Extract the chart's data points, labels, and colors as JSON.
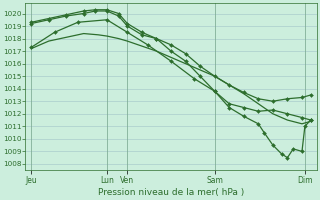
{
  "background_color": "#cceedd",
  "grid_color": "#aacccc",
  "line_color": "#2d6e2d",
  "title": "Pression niveau de la mer( hPa )",
  "ylim_low": 1007.5,
  "ylim_high": 1020.8,
  "yticks": [
    1008,
    1009,
    1010,
    1011,
    1012,
    1013,
    1014,
    1015,
    1016,
    1017,
    1018,
    1019,
    1020
  ],
  "xlim_low": 0,
  "xlim_high": 100,
  "xtick_positions": [
    2,
    28,
    35,
    65,
    96
  ],
  "xtick_labels": [
    "Jeu",
    "Lun",
    "Ven",
    "Sam",
    "Dim"
  ],
  "line1_x": [
    2,
    5,
    8,
    12,
    16,
    20,
    25,
    28,
    32,
    35,
    40,
    45,
    50,
    55,
    60,
    65,
    70,
    75,
    80,
    85,
    90,
    95,
    98
  ],
  "line1_y": [
    1017.2,
    1017.5,
    1017.8,
    1018.0,
    1018.2,
    1018.4,
    1018.3,
    1018.2,
    1018.0,
    1017.8,
    1017.4,
    1017.0,
    1016.5,
    1016.0,
    1015.5,
    1015.0,
    1014.3,
    1013.6,
    1012.8,
    1012.0,
    1011.5,
    1011.2,
    1011.4
  ],
  "line2_x": [
    2,
    8,
    14,
    20,
    24,
    28,
    32,
    35,
    40,
    45,
    50,
    55,
    60,
    65,
    70,
    75,
    80,
    85,
    90,
    95,
    98
  ],
  "line2_y": [
    1019.2,
    1019.5,
    1019.8,
    1020.0,
    1020.2,
    1020.2,
    1019.8,
    1019.0,
    1018.3,
    1018.0,
    1017.5,
    1016.8,
    1015.8,
    1015.0,
    1014.3,
    1013.7,
    1013.2,
    1013.0,
    1013.2,
    1013.3,
    1013.5
  ],
  "line3_x": [
    2,
    8,
    14,
    20,
    24,
    28,
    32,
    35,
    40,
    45,
    50,
    55,
    60,
    65,
    70,
    75,
    80,
    85,
    90,
    95,
    98
  ],
  "line3_y": [
    1019.3,
    1019.6,
    1019.9,
    1020.2,
    1020.3,
    1020.3,
    1020.0,
    1019.2,
    1018.5,
    1018.0,
    1017.0,
    1016.2,
    1015.0,
    1013.8,
    1012.8,
    1012.5,
    1012.2,
    1012.3,
    1012.0,
    1011.7,
    1011.5
  ],
  "line4_x": [
    2,
    10,
    18,
    28,
    35,
    42,
    50,
    58,
    65,
    70,
    75,
    80,
    82,
    85,
    88,
    90,
    92,
    95,
    96,
    98
  ],
  "line4_y": [
    1017.3,
    1018.5,
    1019.3,
    1019.5,
    1018.5,
    1017.5,
    1016.2,
    1014.8,
    1013.8,
    1012.5,
    1011.8,
    1011.2,
    1010.5,
    1009.5,
    1008.8,
    1008.5,
    1009.2,
    1009.0,
    1011.0,
    1011.5
  ]
}
